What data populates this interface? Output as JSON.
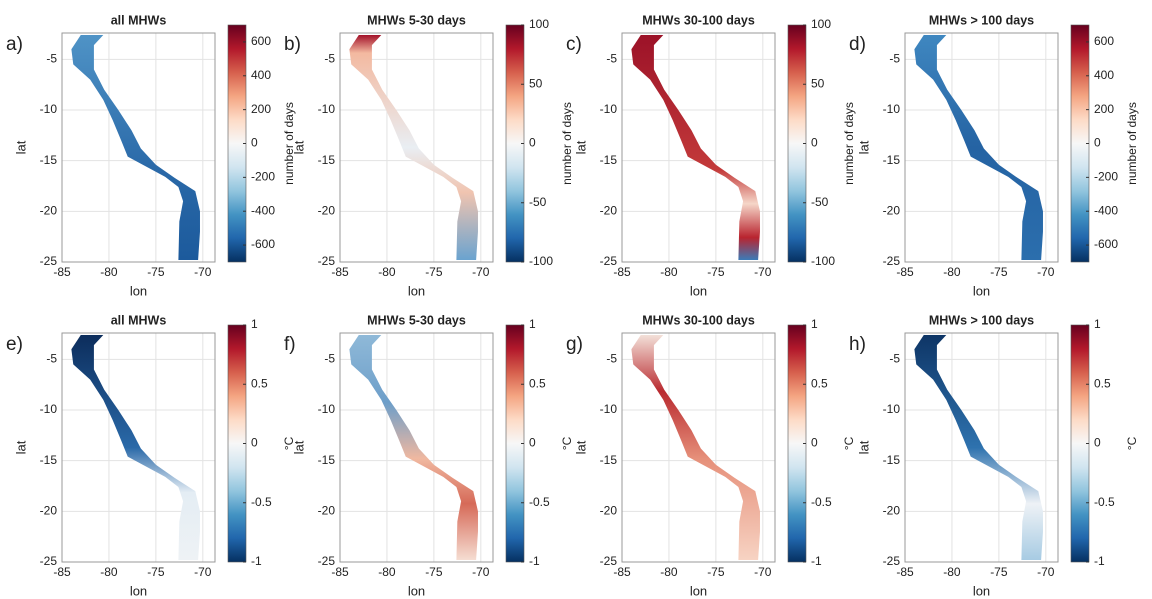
{
  "chart_data": [
    {
      "type": "map",
      "panel_label": "a)",
      "title": "all MHWs",
      "xlabel": "lon",
      "ylabel": "lat",
      "xlim": [
        -85,
        -68.7
      ],
      "ylim": [
        -25,
        -2.4
      ],
      "xticks": [
        -85,
        -80,
        -75,
        -70
      ],
      "yticks": [
        -5,
        -10,
        -15,
        -20,
        -25
      ],
      "grid": true,
      "colorbar": {
        "label": "number of days",
        "lim": [
          -700,
          700
        ],
        "ticks": [
          -600,
          -400,
          -200,
          0,
          200,
          400,
          600
        ]
      }
    },
    {
      "type": "map",
      "panel_label": "b)",
      "title": "MHWs 5-30 days",
      "xlabel": "lon",
      "ylabel": "lat",
      "xlim": [
        -85,
        -68.7
      ],
      "ylim": [
        -25,
        -2.4
      ],
      "xticks": [
        -85,
        -80,
        -75,
        -70
      ],
      "yticks": [
        -5,
        -10,
        -15,
        -20,
        -25
      ],
      "grid": true,
      "colorbar": {
        "label": "number of days",
        "lim": [
          -100,
          100
        ],
        "ticks": [
          -100,
          -50,
          0,
          50,
          100
        ]
      }
    },
    {
      "type": "map",
      "panel_label": "c)",
      "title": "MHWs 30-100 days",
      "xlabel": "lon",
      "ylabel": "lat",
      "xlim": [
        -85,
        -68.7
      ],
      "ylim": [
        -25,
        -2.4
      ],
      "xticks": [
        -85,
        -80,
        -75,
        -70
      ],
      "yticks": [
        -5,
        -10,
        -15,
        -20,
        -25
      ],
      "grid": true,
      "colorbar": {
        "label": "number of days",
        "lim": [
          -100,
          100
        ],
        "ticks": [
          -100,
          -50,
          0,
          50,
          100
        ]
      }
    },
    {
      "type": "map",
      "panel_label": "d)",
      "title": "MHWs > 100 days",
      "xlabel": "lon",
      "ylabel": "lat",
      "xlim": [
        -85,
        -68.7
      ],
      "ylim": [
        -25,
        -2.4
      ],
      "xticks": [
        -85,
        -80,
        -75,
        -70
      ],
      "yticks": [
        -5,
        -10,
        -15,
        -20,
        -25
      ],
      "grid": true,
      "colorbar": {
        "label": "number of days",
        "lim": [
          -700,
          700
        ],
        "ticks": [
          -600,
          -400,
          -200,
          0,
          200,
          400,
          600
        ]
      }
    },
    {
      "type": "map",
      "panel_label": "e)",
      "title": "all MHWs",
      "xlabel": "lon",
      "ylabel": "lat",
      "xlim": [
        -85,
        -68.7
      ],
      "ylim": [
        -25,
        -2.4
      ],
      "xticks": [
        -85,
        -80,
        -75,
        -70
      ],
      "yticks": [
        -5,
        -10,
        -15,
        -20,
        -25
      ],
      "grid": true,
      "colorbar": {
        "label": "°C",
        "lim": [
          -1,
          1
        ],
        "ticks": [
          -1,
          -0.5,
          0,
          0.5,
          1
        ]
      }
    },
    {
      "type": "map",
      "panel_label": "f)",
      "title": "MHWs 5-30 days",
      "xlabel": "lon",
      "ylabel": "lat",
      "xlim": [
        -85,
        -68.7
      ],
      "ylim": [
        -25,
        -2.4
      ],
      "xticks": [
        -85,
        -80,
        -75,
        -70
      ],
      "yticks": [
        -5,
        -10,
        -15,
        -20,
        -25
      ],
      "grid": true,
      "colorbar": {
        "label": "°C",
        "lim": [
          -1,
          1
        ],
        "ticks": [
          -1,
          -0.5,
          0,
          0.5,
          1
        ]
      }
    },
    {
      "type": "map",
      "panel_label": "g)",
      "title": "MHWs 30-100 days",
      "xlabel": "lon",
      "ylabel": "lat",
      "xlim": [
        -85,
        -68.7
      ],
      "ylim": [
        -25,
        -2.4
      ],
      "xticks": [
        -85,
        -80,
        -75,
        -70
      ],
      "yticks": [
        -5,
        -10,
        -15,
        -20,
        -25
      ],
      "grid": true,
      "colorbar": {
        "label": "°C",
        "lim": [
          -1,
          1
        ],
        "ticks": [
          -1,
          -0.5,
          0,
          0.5,
          1
        ]
      }
    },
    {
      "type": "map",
      "panel_label": "h)",
      "title": "MHWs > 100 days",
      "xlabel": "lon",
      "ylabel": "lat",
      "xlim": [
        -85,
        -68.7
      ],
      "ylim": [
        -25,
        -2.4
      ],
      "xticks": [
        -85,
        -80,
        -75,
        -70
      ],
      "yticks": [
        -5,
        -10,
        -15,
        -20,
        -25
      ],
      "grid": true,
      "colorbar": {
        "label": "°C",
        "lim": [
          -1,
          1
        ],
        "ticks": [
          -1,
          -0.5,
          0,
          0.5,
          1
        ]
      }
    }
  ]
}
